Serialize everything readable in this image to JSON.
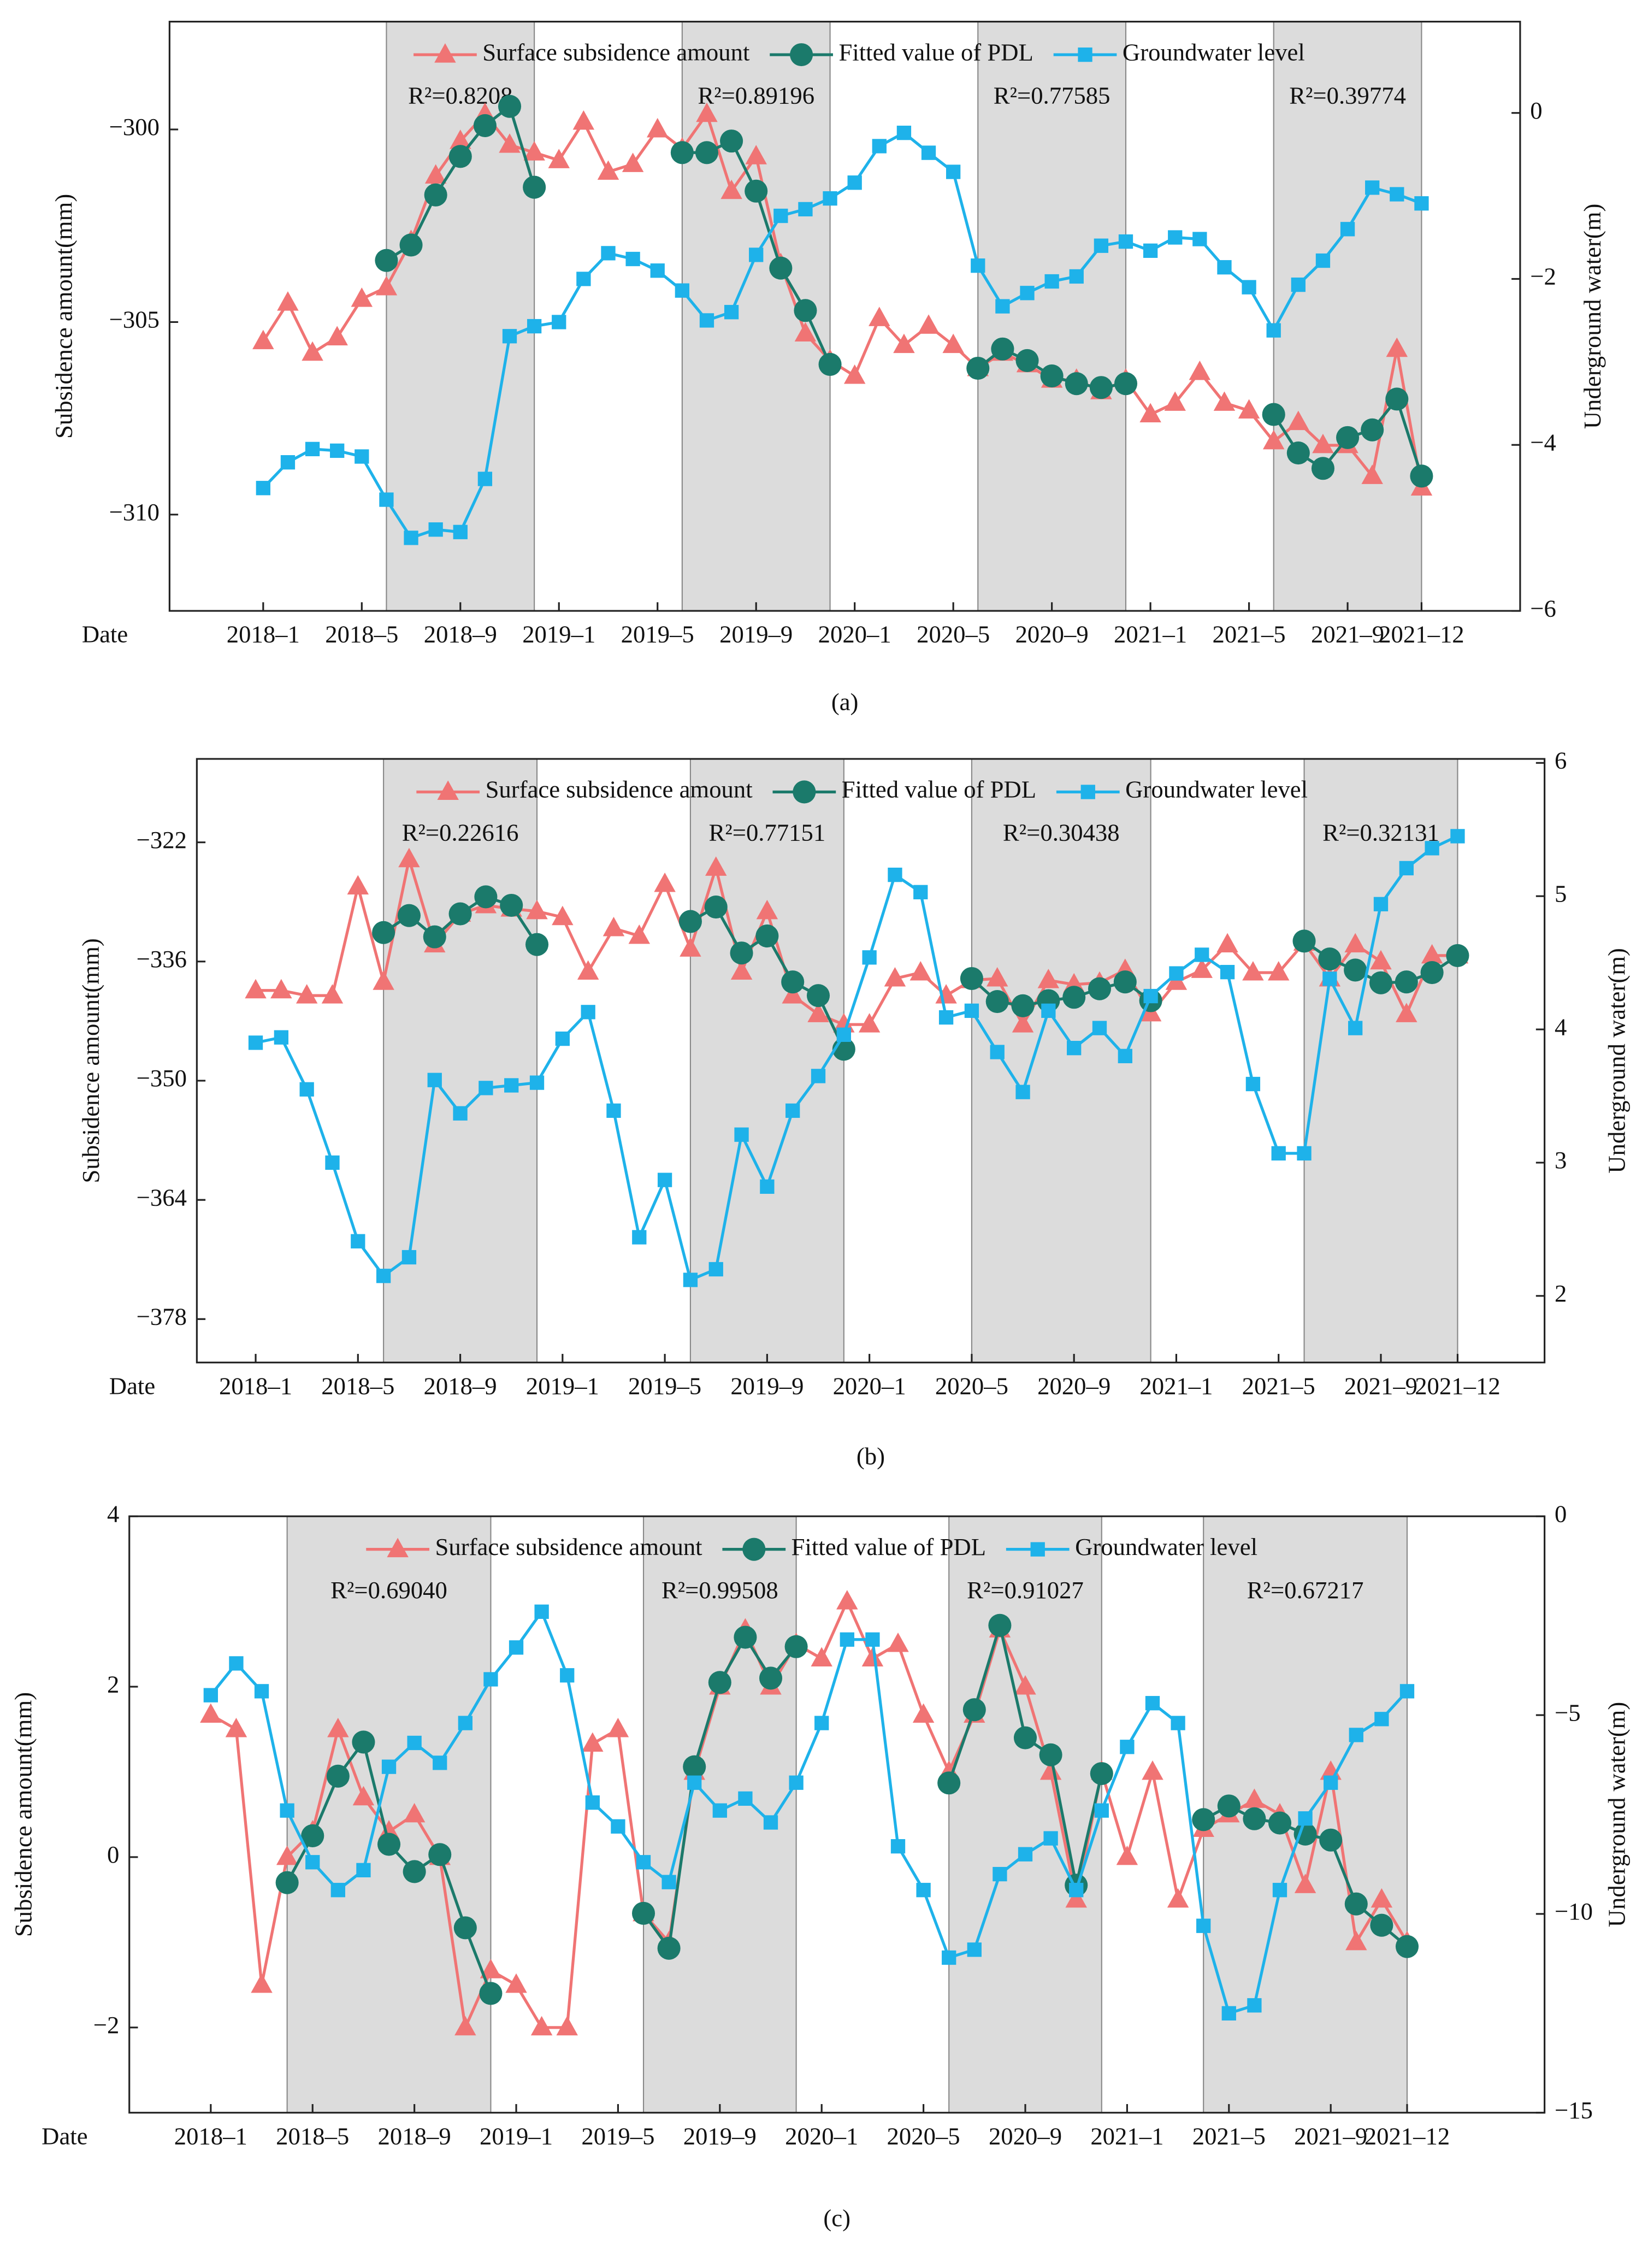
{
  "chart_data": [
    {
      "type": "line",
      "label": "(a)",
      "xlabel": "Date",
      "ylabel": "Subsidence amount(mm)",
      "y2label": "Underground water(m)",
      "x": [
        0,
        1,
        2,
        3,
        4,
        5,
        6,
        7,
        8,
        9,
        10,
        11,
        12,
        13,
        14,
        15,
        16,
        17,
        18,
        19,
        20,
        21,
        22,
        23,
        24,
        25,
        26,
        27,
        28,
        29,
        30,
        31,
        32,
        33,
        34,
        35,
        36,
        37,
        38,
        39,
        40,
        41,
        42,
        43,
        44,
        45,
        46,
        47
      ],
      "xlim": [
        -3.8,
        51
      ],
      "xticks": [
        {
          "value": 0,
          "label": "2018–1"
        },
        {
          "value": 4,
          "label": "2018–5"
        },
        {
          "value": 8,
          "label": "2018–9"
        },
        {
          "value": 12,
          "label": "2019–1"
        },
        {
          "value": 16,
          "label": "2019–5"
        },
        {
          "value": 20,
          "label": "2019–9"
        },
        {
          "value": 24,
          "label": "2020–1"
        },
        {
          "value": 28,
          "label": "2020–5"
        },
        {
          "value": 32,
          "label": "2020–9"
        },
        {
          "value": 36,
          "label": "2021–1"
        },
        {
          "value": 40,
          "label": "2021–5"
        },
        {
          "value": 44,
          "label": "2021–9"
        },
        {
          "value": 47,
          "label": "2021–12"
        }
      ],
      "ylim": [
        -312.5,
        -297.2
      ],
      "yticks": [
        {
          "value": -310,
          "label": "−310"
        },
        {
          "value": -305,
          "label": "−305"
        },
        {
          "value": -300,
          "label": "−300"
        }
      ],
      "y2lim": [
        -6,
        1.1
      ],
      "y2ticks": [
        {
          "value": -6,
          "label": "−6"
        },
        {
          "value": -4,
          "label": "−4"
        },
        {
          "value": -2,
          "label": "−2"
        },
        0
      ],
      "shaded": [
        [
          5,
          11
        ],
        [
          17,
          23
        ],
        [
          29,
          35
        ],
        [
          41,
          47
        ]
      ],
      "shade_color": "#dcdcdc",
      "annotations": [
        "R²=0.8208",
        "R²=0.89196",
        "R²=0.77585",
        "R²=0.39774"
      ],
      "series": [
        {
          "name": "Surface subsidence amount",
          "color": "#f07474",
          "marker": "triangle",
          "values": [
            -305.5,
            -304.5,
            -305.8,
            -305.4,
            -304.4,
            -304.1,
            -302.9,
            -301.2,
            -300.3,
            -299.6,
            -300.4,
            -300.6,
            -300.8,
            -299.8,
            -301.1,
            -300.9,
            -300.0,
            -300.5,
            -299.6,
            -301.6,
            -300.7,
            -303.5,
            -305.3,
            -306.0,
            -306.4,
            -304.9,
            -305.6,
            -305.1,
            -305.6,
            -306.2,
            -305.8,
            -306.1,
            -306.5,
            -306.5,
            -306.8,
            -306.5,
            -307.4,
            -307.1,
            -306.3,
            -307.1,
            -307.3,
            -308.1,
            -307.6,
            -308.2,
            -308.2,
            -309.0,
            -305.7,
            -309.3
          ]
        },
        {
          "name": "Fitted value of PDL",
          "color": "#1b7a6b",
          "marker": "circle",
          "values": [
            null,
            null,
            null,
            null,
            null,
            -303.4,
            -303.0,
            -301.7,
            -300.7,
            -299.9,
            -299.4,
            -301.5,
            null,
            null,
            null,
            null,
            null,
            -300.6,
            -300.6,
            -300.3,
            -301.6,
            -303.6,
            -304.7,
            -306.1,
            null,
            null,
            null,
            null,
            null,
            -306.2,
            -305.7,
            -306.0,
            -306.4,
            -306.6,
            -306.7,
            -306.6,
            null,
            null,
            null,
            null,
            null,
            -307.4,
            -308.4,
            -308.8,
            -308.0,
            -307.8,
            -307.0,
            -309.0
          ]
        },
        {
          "name": "Groundwater level",
          "color": "#1eb2ea",
          "marker": "square",
          "axis": "y2",
          "values": [
            -4.52,
            -4.21,
            -4.05,
            -4.07,
            -4.14,
            -4.66,
            -5.12,
            -5.02,
            -5.05,
            -4.41,
            -2.69,
            -2.57,
            -2.52,
            -2.0,
            -1.69,
            -1.76,
            -1.9,
            -2.14,
            -2.5,
            -2.4,
            -1.71,
            -1.24,
            -1.16,
            -1.03,
            -0.84,
            -0.4,
            -0.24,
            -0.48,
            -0.71,
            -1.84,
            -2.33,
            -2.17,
            -2.03,
            -1.97,
            -1.6,
            -1.55,
            -1.66,
            -1.5,
            -1.52,
            -1.86,
            -2.1,
            -2.62,
            -2.07,
            -1.78,
            -1.4,
            -0.9,
            -0.98,
            -1.09
          ]
        }
      ]
    },
    {
      "type": "line",
      "label": "(b)",
      "xlabel": "Date",
      "ylabel": "Subsidence amount(mm)",
      "y2label": "Underground water(m)",
      "x": [
        0,
        1,
        2,
        3,
        4,
        5,
        6,
        7,
        8,
        9,
        10,
        11,
        12,
        13,
        14,
        15,
        16,
        17,
        18,
        19,
        20,
        21,
        22,
        23,
        24,
        25,
        26,
        27,
        28,
        29,
        30,
        31,
        32,
        33,
        34,
        35,
        36,
        37,
        38,
        39,
        40,
        41,
        42,
        43,
        44,
        45,
        46,
        47
      ],
      "xlim": [
        -2.3,
        50.4
      ],
      "xticks": [
        {
          "value": 0,
          "label": "2018–1"
        },
        {
          "value": 4,
          "label": "2018–5"
        },
        {
          "value": 8,
          "label": "2018–9"
        },
        {
          "value": 12,
          "label": "2019–1"
        },
        {
          "value": 16,
          "label": "2019–5"
        },
        {
          "value": 20,
          "label": "2019–9"
        },
        {
          "value": 24,
          "label": "2020–1"
        },
        {
          "value": 28,
          "label": "2020–5"
        },
        {
          "value": 32,
          "label": "2020–9"
        },
        {
          "value": 36,
          "label": "2021–1"
        },
        {
          "value": 40,
          "label": "2021–5"
        },
        {
          "value": 44,
          "label": "2021–9"
        },
        {
          "value": 47,
          "label": "2021–12"
        }
      ],
      "ylim": [
        -383.1,
        -312.2
      ],
      "yticks": [
        {
          "value": -378,
          "label": "−378"
        },
        {
          "value": -364,
          "label": "−364"
        },
        {
          "value": -350,
          "label": "−350"
        },
        {
          "value": -336,
          "label": "−336"
        },
        {
          "value": -322,
          "label": "−322"
        }
      ],
      "y2lim": [
        1.5,
        6.03
      ],
      "y2ticks": [
        2,
        3,
        4,
        5,
        6
      ],
      "shaded": [
        [
          5,
          11
        ],
        [
          17,
          23
        ],
        [
          28,
          35
        ],
        [
          41,
          47
        ]
      ],
      "shade_color": "#dcdcdc",
      "annotations": [
        "R²=0.22616",
        "R²=0.77151",
        "R²=0.30438",
        "R²=0.32131"
      ],
      "series": [
        {
          "name": "Surface subsidence amount",
          "color": "#f07474",
          "marker": "triangle",
          "values": [
            -339.4,
            -339.4,
            -340.0,
            -340.0,
            -327.2,
            -338.4,
            -324.0,
            -334.0,
            -330.4,
            -329.4,
            -329.8,
            -330.1,
            -330.8,
            -337.2,
            -332.1,
            -333.0,
            -326.9,
            -334.5,
            -325.0,
            -337.2,
            -330.1,
            -340.0,
            -342.2,
            -343.4,
            -343.4,
            -338.0,
            -337.3,
            -340.0,
            -338.2,
            -338.0,
            -343.4,
            -338.2,
            -338.7,
            -338.5,
            -337.0,
            -342.1,
            -338.4,
            -337.0,
            -334.0,
            -337.3,
            -337.3,
            -333.8,
            -338.0,
            -334.0,
            -336.0,
            -342.2,
            -335.3,
            -335.3
          ]
        },
        {
          "name": "Fitted value of PDL",
          "color": "#1b7a6b",
          "marker": "circle",
          "values": [
            null,
            null,
            null,
            null,
            null,
            -332.6,
            -330.6,
            -333.1,
            -330.4,
            -328.4,
            -329.4,
            -334.0,
            null,
            null,
            null,
            null,
            null,
            -331.3,
            -329.6,
            -335.0,
            -333.0,
            -338.4,
            -340.0,
            -346.3,
            null,
            null,
            null,
            null,
            -338.0,
            -340.7,
            -341.2,
            -340.6,
            -340.2,
            -339.2,
            -338.4,
            -340.6,
            null,
            null,
            null,
            null,
            null,
            -333.6,
            -335.7,
            -337.0,
            -338.5,
            -338.4,
            -337.3,
            -335.3
          ]
        },
        {
          "name": "Groundwater level",
          "color": "#1eb2ea",
          "marker": "square",
          "axis": "y2",
          "values": [
            3.9,
            3.94,
            3.55,
            3.0,
            2.41,
            2.15,
            2.29,
            3.62,
            3.37,
            3.56,
            3.58,
            3.6,
            3.93,
            4.13,
            3.39,
            2.44,
            2.87,
            2.12,
            2.2,
            3.21,
            2.82,
            3.39,
            3.65,
            3.96,
            4.54,
            5.16,
            5.03,
            4.09,
            4.14,
            3.83,
            3.53,
            4.14,
            3.86,
            4.01,
            3.8,
            4.25,
            4.42,
            4.56,
            4.43,
            3.59,
            3.07,
            3.07,
            4.38,
            4.01,
            4.94,
            5.21,
            5.36,
            5.45
          ]
        }
      ]
    },
    {
      "type": "line",
      "label": "(c)",
      "xlabel": "Date",
      "ylabel": "Subsidence amount(mm)",
      "y2label": "Underground water(m)",
      "x": [
        0,
        1,
        2,
        3,
        4,
        5,
        6,
        7,
        8,
        9,
        10,
        11,
        12,
        13,
        14,
        15,
        16,
        17,
        18,
        19,
        20,
        21,
        22,
        23,
        24,
        25,
        26,
        27,
        28,
        29,
        30,
        31,
        32,
        33,
        34,
        35,
        36,
        37,
        38,
        39,
        40,
        41,
        42,
        43,
        44,
        45,
        46,
        47
      ],
      "xlim": [
        -3.2,
        52.4
      ],
      "xticks": [
        {
          "value": 0,
          "label": "2018–1"
        },
        {
          "value": 4,
          "label": "2018–5"
        },
        {
          "value": 8,
          "label": "2018–9"
        },
        {
          "value": 12,
          "label": "2019–1"
        },
        {
          "value": 16,
          "label": "2019–5"
        },
        {
          "value": 20,
          "label": "2019–9"
        },
        {
          "value": 24,
          "label": "2020–1"
        },
        {
          "value": 28,
          "label": "2020–5"
        },
        {
          "value": 32,
          "label": "2020–9"
        },
        {
          "value": 36,
          "label": "2021–1"
        },
        {
          "value": 40,
          "label": "2021–5"
        },
        {
          "value": 44,
          "label": "2021–9"
        },
        {
          "value": 47,
          "label": "2021–12"
        }
      ],
      "ylim": [
        -3,
        4
      ],
      "yticks": [
        {
          "value": -2,
          "label": "−2"
        },
        0,
        2,
        4
      ],
      "y2lim": [
        -15,
        0
      ],
      "y2ticks": [
        {
          "value": -15,
          "label": "−15"
        },
        {
          "value": -10,
          "label": "−10"
        },
        {
          "value": -5,
          "label": "−5"
        },
        0
      ],
      "shaded": [
        [
          3,
          11
        ],
        [
          17,
          23
        ],
        [
          29,
          35
        ],
        [
          39,
          47
        ]
      ],
      "shade_color": "#dcdcdc",
      "annotations": [
        "R²=0.69040",
        "R²=0.99508",
        "R²=0.91027",
        "R²=0.67217"
      ],
      "series": [
        {
          "name": "Surface subsidence amount",
          "color": "#f07474",
          "marker": "triangle",
          "values": [
            1.67,
            1.5,
            -1.5,
            0.0,
            0.3,
            1.5,
            0.7,
            0.3,
            0.5,
            0.0,
            -2.0,
            -1.33,
            -1.5,
            -2.0,
            -2.0,
            1.33,
            1.5,
            -0.66,
            -1.0,
            1.0,
            2.0,
            2.67,
            2.0,
            2.5,
            2.33,
            3.0,
            2.33,
            2.5,
            1.67,
            1.0,
            1.67,
            2.67,
            2.0,
            1.0,
            -0.5,
            1.0,
            0.0,
            1.0,
            -0.5,
            0.33,
            0.5,
            0.67,
            0.5,
            -0.33,
            1.0,
            -1.0,
            -0.5,
            -1.0
          ]
        },
        {
          "name": "Fitted value of PDL",
          "color": "#1b7a6b",
          "marker": "circle",
          "values": [
            null,
            null,
            null,
            -0.3,
            0.25,
            0.95,
            1.35,
            0.15,
            -0.17,
            0.03,
            -0.83,
            -1.6,
            null,
            null,
            null,
            null,
            null,
            -0.66,
            -1.07,
            1.06,
            2.05,
            2.58,
            2.1,
            2.47,
            null,
            null,
            null,
            null,
            null,
            0.87,
            1.73,
            2.72,
            1.4,
            1.2,
            -0.33,
            0.98,
            null,
            null,
            null,
            0.44,
            0.6,
            0.45,
            0.4,
            0.27,
            0.2,
            -0.55,
            -0.8,
            -1.05
          ]
        },
        {
          "name": "Groundwater level",
          "color": "#1eb2ea",
          "marker": "square",
          "axis": "y2",
          "values": [
            -4.5,
            -3.7,
            -4.4,
            -7.4,
            -8.7,
            -9.4,
            -8.9,
            -6.3,
            -5.7,
            -6.2,
            -5.2,
            -4.1,
            -3.3,
            -2.4,
            -4.0,
            -7.2,
            -7.8,
            -8.7,
            -9.2,
            -6.7,
            -7.4,
            -7.1,
            -7.7,
            -6.7,
            -5.2,
            -3.1,
            -3.1,
            -8.3,
            -9.4,
            -11.1,
            -10.9,
            -9.0,
            -8.5,
            -8.1,
            -9.4,
            -7.4,
            -5.8,
            -4.7,
            -5.2,
            -10.3,
            -12.5,
            -12.3,
            -9.4,
            -7.6,
            -6.7,
            -5.5,
            -5.1,
            -4.4
          ]
        }
      ]
    }
  ]
}
